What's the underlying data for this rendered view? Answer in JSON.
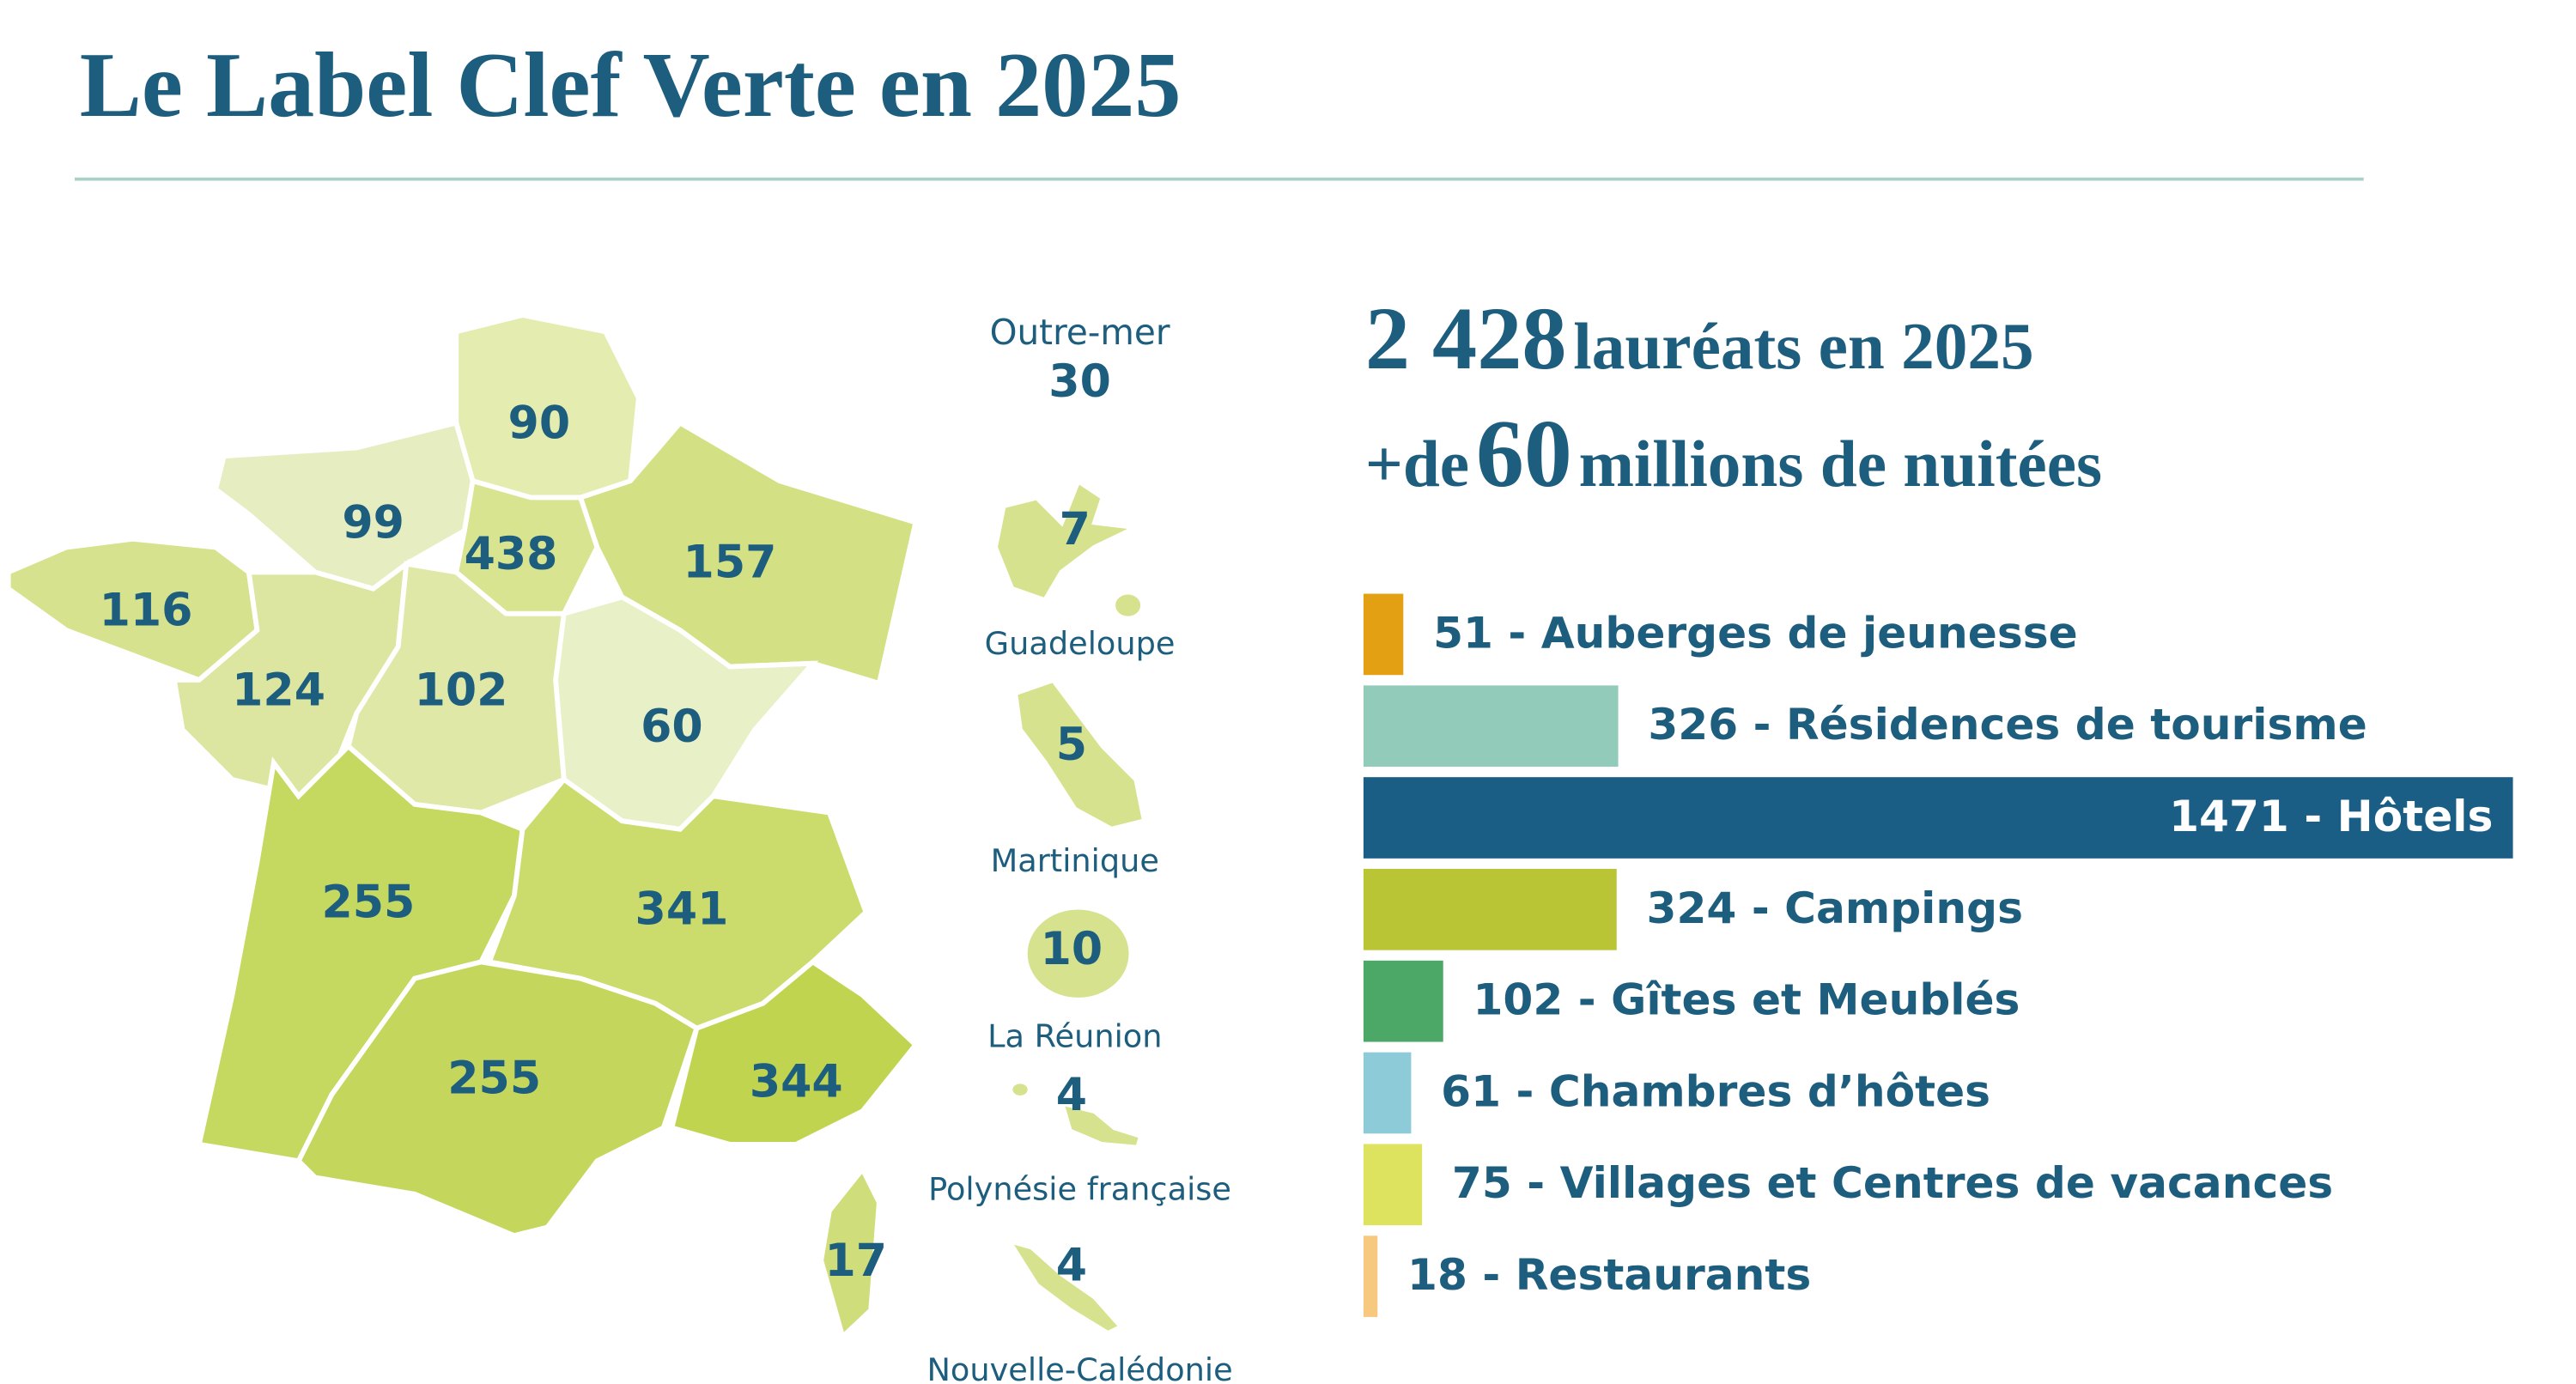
{
  "header": {
    "title": "Le Label Clef Verte en 2025"
  },
  "map": {
    "regions": [
      {
        "value": 90
      },
      {
        "value": 99
      },
      {
        "value": 438
      },
      {
        "value": 157
      },
      {
        "value": 116
      },
      {
        "value": 124
      },
      {
        "value": 102
      },
      {
        "value": 60
      },
      {
        "value": 255
      },
      {
        "value": 341
      },
      {
        "value": 255
      },
      {
        "value": 344
      },
      {
        "value": 17
      }
    ]
  },
  "overseas": {
    "title": "Outre-mer",
    "total": 30,
    "territories": [
      {
        "name": "Guadeloupe",
        "value": 7
      },
      {
        "name": "Martinique",
        "value": 5
      },
      {
        "name": "La Réunion",
        "value": 10
      },
      {
        "name": "Polynésie française",
        "value": 4
      },
      {
        "name": "Nouvelle-Calédonie",
        "value": 4
      }
    ]
  },
  "headline": {
    "line1": {
      "number": "2 428",
      "text": "lauréats en 2025"
    },
    "line2": {
      "prefix": "+de",
      "number": "60",
      "text": "millions de nuitées"
    }
  },
  "chart_data": {
    "type": "bar",
    "orientation": "horizontal",
    "values": [
      51,
      326,
      1471,
      324,
      102,
      61,
      75,
      18
    ],
    "value_labels": [
      "51 - Auberges de jeunesse",
      "326 - Résidences de tourisme",
      "1471 - Hôtels",
      "324 - Campings",
      "102 - Gîtes et Meublés",
      "61 - Chambres d’hôtes",
      "75 - Villages et Centres de vacances",
      "18 - Restaurants"
    ],
    "colors": [
      "#e3a012",
      "#92cbb9",
      "#1a5e86",
      "#bac535",
      "#4ba866",
      "#8dcbd8",
      "#dee35f",
      "#f6c97f"
    ],
    "xlim": [
      0,
      1471
    ]
  }
}
